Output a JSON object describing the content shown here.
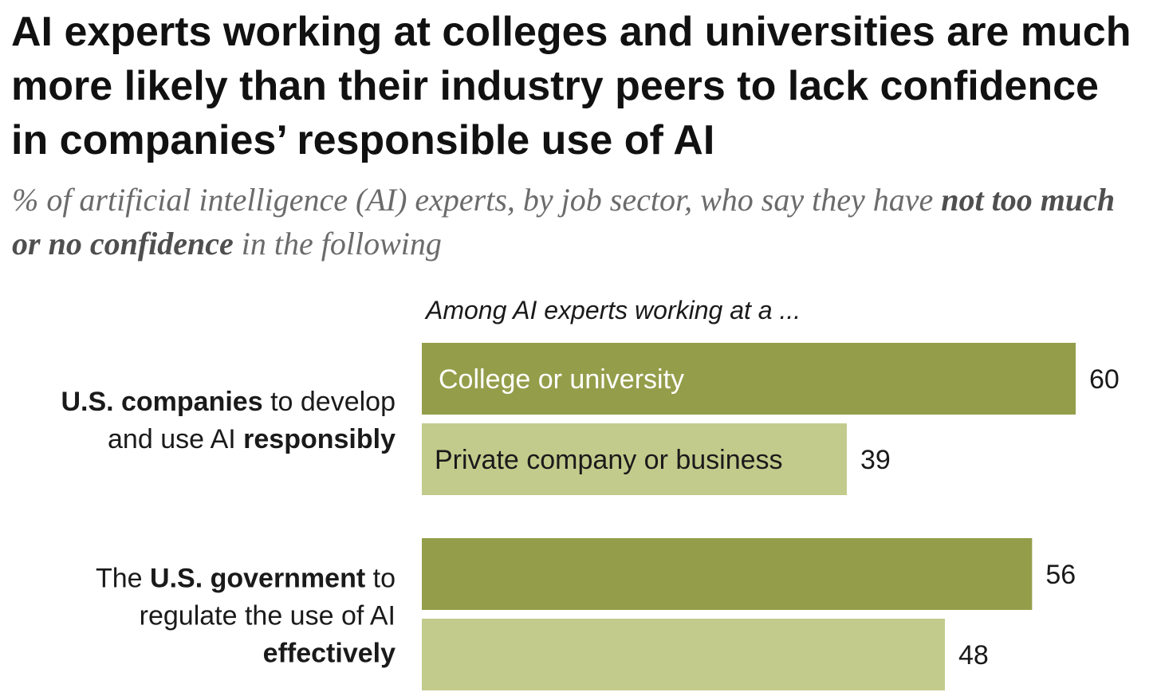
{
  "title": "AI experts working at colleges and universities are much more likely than their industry peers to lack confidence in companies’ responsible use of AI",
  "subtitle": {
    "part1": "% of artificial intelligence (AI) experts, by job sector, who say they have ",
    "emphasis": "not too much or no confidence",
    "part2": " in the following"
  },
  "colors": {
    "college": "#949e4a",
    "private": "#c3cb8c",
    "text": "#1a1a1a"
  },
  "chart_data": {
    "type": "bar",
    "orientation": "horizontal",
    "header": "Among AI experts working at a ...",
    "categories": [
      {
        "label_runs": [
          [
            {
              "text": "U.S. companies",
              "bold": true
            },
            {
              "text": " to develop",
              "bold": false
            }
          ],
          [
            {
              "text": "and use AI ",
              "bold": false
            },
            {
              "text": "responsibly",
              "bold": true
            }
          ]
        ]
      },
      {
        "label_runs": [
          [
            {
              "text": "The ",
              "bold": false
            },
            {
              "text": "U.S. government",
              "bold": true
            },
            {
              "text": " to",
              "bold": false
            }
          ],
          [
            {
              "text": "regulate the use of AI",
              "bold": false
            }
          ],
          [
            {
              "text": "effectively",
              "bold": true
            }
          ]
        ]
      }
    ],
    "series": [
      {
        "name": "College or university",
        "values": [
          60,
          56
        ]
      },
      {
        "name": "Private company or business",
        "values": [
          39,
          48
        ]
      }
    ],
    "legend_placement": "inside first bars",
    "xlim": [
      0,
      60
    ],
    "grid": false
  }
}
